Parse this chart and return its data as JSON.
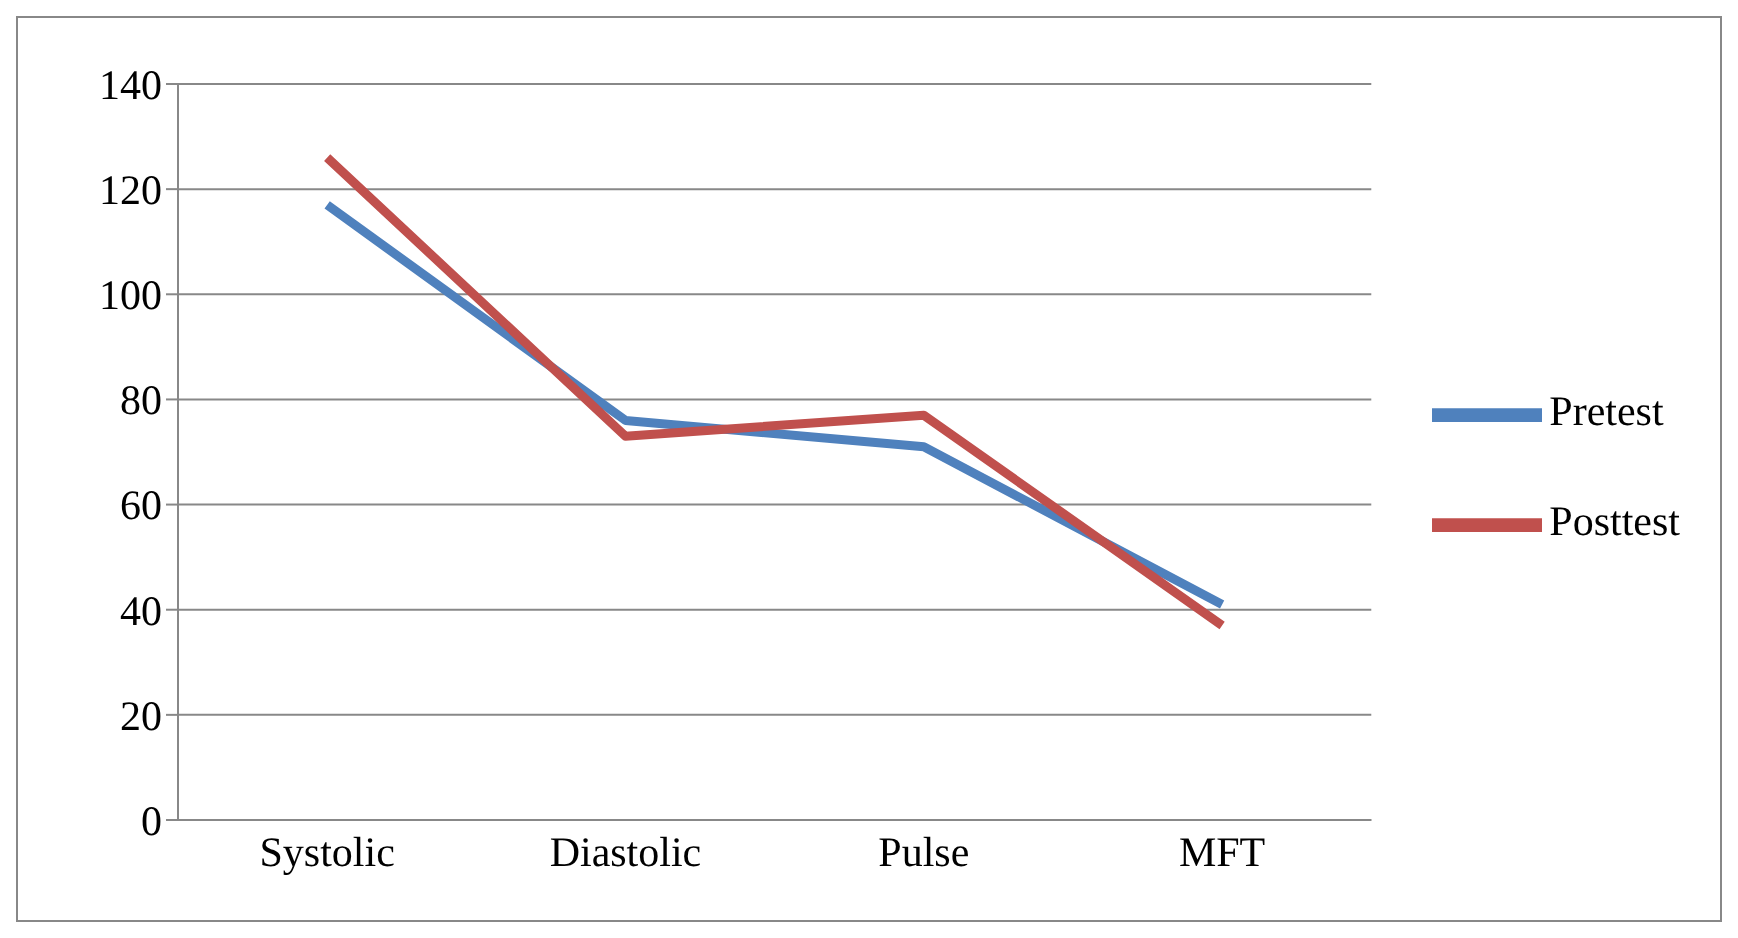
{
  "chart_data": {
    "type": "line",
    "categories": [
      "Systolic",
      "Diastolic",
      "Pulse",
      "MFT"
    ],
    "series": [
      {
        "name": "Pretest",
        "color": "#4f81bd",
        "values": [
          117,
          76,
          71,
          41
        ]
      },
      {
        "name": "Posttest",
        "color": "#c0504d",
        "values": [
          126,
          73,
          77,
          37
        ]
      }
    ],
    "ylim": [
      0,
      140
    ],
    "yticks": [
      0,
      20,
      40,
      60,
      80,
      100,
      120,
      140
    ],
    "grid": "y",
    "legend": "right",
    "marker": "none",
    "line_style": "solid"
  }
}
